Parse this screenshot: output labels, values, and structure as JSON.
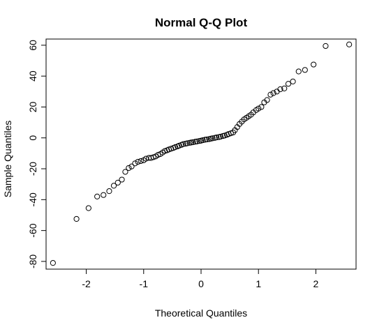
{
  "chart_data": {
    "type": "scatter",
    "title": "Normal Q-Q Plot",
    "xlabel": "Theoretical Quantiles",
    "ylabel": "Sample Quantiles",
    "xlim": [
      -2.7,
      2.7
    ],
    "ylim": [
      -85,
      64
    ],
    "xticks": [
      -2,
      -1,
      0,
      1,
      2
    ],
    "xtick_labels": [
      "-2",
      "-1",
      "0",
      "1",
      "2"
    ],
    "yticks": [
      -80,
      -60,
      -40,
      -20,
      0,
      20,
      40,
      60
    ],
    "ytick_labels": [
      "-80",
      "-60",
      "-40",
      "-20",
      "0",
      "20",
      "40",
      "60"
    ],
    "grid": false,
    "marker": "open-circle",
    "point_color": "#000000",
    "points": [
      {
        "x": -2.58,
        "y": -81
      },
      {
        "x": -2.17,
        "y": -52.5
      },
      {
        "x": -1.96,
        "y": -45.5
      },
      {
        "x": -1.81,
        "y": -38
      },
      {
        "x": -1.7,
        "y": -37
      },
      {
        "x": -1.6,
        "y": -34.5
      },
      {
        "x": -1.52,
        "y": -31
      },
      {
        "x": -1.45,
        "y": -29
      },
      {
        "x": -1.38,
        "y": -27
      },
      {
        "x": -1.32,
        "y": -22
      },
      {
        "x": -1.26,
        "y": -19.5
      },
      {
        "x": -1.21,
        "y": -18.5
      },
      {
        "x": -1.15,
        "y": -16.5
      },
      {
        "x": -1.1,
        "y": -15.5
      },
      {
        "x": -1.05,
        "y": -15
      },
      {
        "x": -1.0,
        "y": -14.5
      },
      {
        "x": -0.96,
        "y": -13.5
      },
      {
        "x": -0.91,
        "y": -13
      },
      {
        "x": -0.87,
        "y": -13
      },
      {
        "x": -0.83,
        "y": -12.5
      },
      {
        "x": -0.79,
        "y": -12
      },
      {
        "x": -0.75,
        "y": -11
      },
      {
        "x": -0.71,
        "y": -10.5
      },
      {
        "x": -0.67,
        "y": -9.5
      },
      {
        "x": -0.63,
        "y": -8.5
      },
      {
        "x": -0.59,
        "y": -8
      },
      {
        "x": -0.56,
        "y": -7.5
      },
      {
        "x": -0.52,
        "y": -7
      },
      {
        "x": -0.48,
        "y": -6.5
      },
      {
        "x": -0.45,
        "y": -6
      },
      {
        "x": -0.41,
        "y": -5.5
      },
      {
        "x": -0.38,
        "y": -5
      },
      {
        "x": -0.34,
        "y": -4.5
      },
      {
        "x": -0.31,
        "y": -4
      },
      {
        "x": -0.27,
        "y": -3.8
      },
      {
        "x": -0.24,
        "y": -3.5
      },
      {
        "x": -0.2,
        "y": -3.2
      },
      {
        "x": -0.17,
        "y": -3
      },
      {
        "x": -0.14,
        "y": -2.8
      },
      {
        "x": -0.1,
        "y": -2.5
      },
      {
        "x": -0.07,
        "y": -2.3
      },
      {
        "x": -0.03,
        "y": -2
      },
      {
        "x": 0.0,
        "y": -1.8
      },
      {
        "x": 0.03,
        "y": -1.5
      },
      {
        "x": 0.07,
        "y": -1.2
      },
      {
        "x": 0.1,
        "y": -1
      },
      {
        "x": 0.14,
        "y": -0.8
      },
      {
        "x": 0.17,
        "y": -0.5
      },
      {
        "x": 0.2,
        "y": -0.3
      },
      {
        "x": 0.24,
        "y": 0
      },
      {
        "x": 0.27,
        "y": 0.3
      },
      {
        "x": 0.31,
        "y": 0.5
      },
      {
        "x": 0.34,
        "y": 0.8
      },
      {
        "x": 0.38,
        "y": 1.2
      },
      {
        "x": 0.41,
        "y": 1.5
      },
      {
        "x": 0.45,
        "y": 2
      },
      {
        "x": 0.48,
        "y": 2.5
      },
      {
        "x": 0.52,
        "y": 3
      },
      {
        "x": 0.56,
        "y": 3.5
      },
      {
        "x": 0.59,
        "y": 5
      },
      {
        "x": 0.63,
        "y": 7
      },
      {
        "x": 0.67,
        "y": 9
      },
      {
        "x": 0.71,
        "y": 10.5
      },
      {
        "x": 0.75,
        "y": 12
      },
      {
        "x": 0.79,
        "y": 13
      },
      {
        "x": 0.83,
        "y": 14
      },
      {
        "x": 0.87,
        "y": 15
      },
      {
        "x": 0.91,
        "y": 16.5
      },
      {
        "x": 0.96,
        "y": 18
      },
      {
        "x": 1.0,
        "y": 19
      },
      {
        "x": 1.05,
        "y": 20
      },
      {
        "x": 1.1,
        "y": 23
      },
      {
        "x": 1.15,
        "y": 24.5
      },
      {
        "x": 1.21,
        "y": 28
      },
      {
        "x": 1.26,
        "y": 29
      },
      {
        "x": 1.32,
        "y": 30
      },
      {
        "x": 1.38,
        "y": 31.5
      },
      {
        "x": 1.45,
        "y": 32
      },
      {
        "x": 1.52,
        "y": 35
      },
      {
        "x": 1.6,
        "y": 36.5
      },
      {
        "x": 1.7,
        "y": 43
      },
      {
        "x": 1.81,
        "y": 44
      },
      {
        "x": 1.96,
        "y": 47.5
      },
      {
        "x": 2.17,
        "y": 59.5
      },
      {
        "x": 2.58,
        "y": 60.5
      }
    ]
  }
}
